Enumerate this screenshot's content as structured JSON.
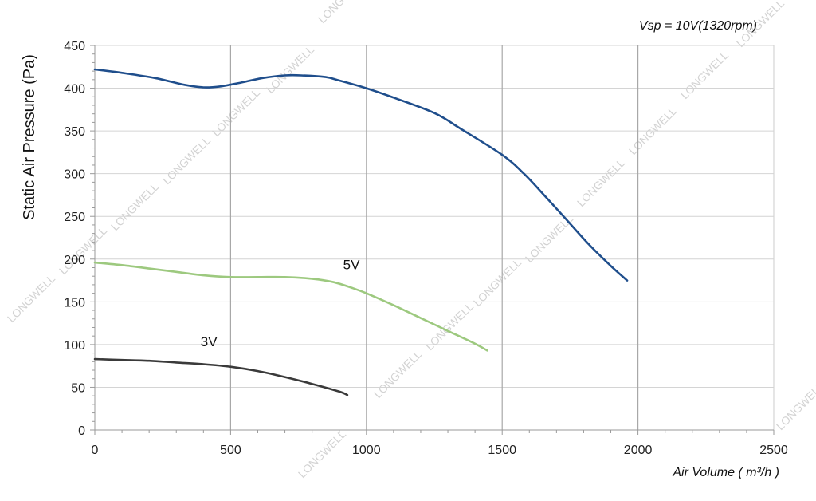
{
  "chart_data": {
    "type": "line",
    "ylabel": "Static Air Pressure  (Pa)",
    "xlabel": "Air Volume ( m³/h )",
    "annotation": "Vsp = 10V(1320rpm)",
    "watermark": "LONGWELL",
    "xlim": [
      0,
      2500
    ],
    "ylim": [
      0,
      450
    ],
    "x_ticks": [
      0,
      500,
      1000,
      1500,
      2000,
      2500
    ],
    "y_ticks": [
      0,
      50,
      100,
      150,
      200,
      250,
      300,
      350,
      400,
      450
    ],
    "grid": true,
    "series": [
      {
        "name": "",
        "color": "#1f4e8c",
        "x": [
          0,
          100,
          220,
          330,
          400,
          460,
          530,
          620,
          700,
          760,
          850,
          900,
          1000,
          1100,
          1250,
          1350,
          1500,
          1580,
          1660,
          1740,
          1820,
          1900,
          1960
        ],
        "y": [
          422,
          418,
          412,
          404,
          401,
          402,
          406,
          412,
          415,
          415,
          413,
          409,
          400,
          389,
          371,
          352,
          322,
          300,
          273,
          245,
          217,
          192,
          175
        ]
      },
      {
        "name": "5V",
        "color": "#9dc97f",
        "x": [
          0,
          100,
          200,
          300,
          400,
          500,
          600,
          700,
          800,
          880,
          950,
          1000,
          1100,
          1200,
          1300,
          1400,
          1445
        ],
        "y": [
          196,
          193,
          189,
          185,
          181,
          179,
          179,
          179,
          177,
          173,
          166,
          160,
          146,
          131,
          116,
          101,
          93
        ]
      },
      {
        "name": "3V",
        "color": "#3a3a3a",
        "x": [
          0,
          100,
          200,
          300,
          400,
          500,
          600,
          700,
          800,
          900,
          930
        ],
        "y": [
          83,
          82,
          81,
          79,
          77,
          74,
          69,
          62,
          54,
          45,
          41
        ]
      }
    ],
    "series_labels": [
      {
        "text": "5V",
        "x": 945,
        "y": 188
      },
      {
        "text": "3V",
        "x": 420,
        "y": 98
      }
    ]
  }
}
